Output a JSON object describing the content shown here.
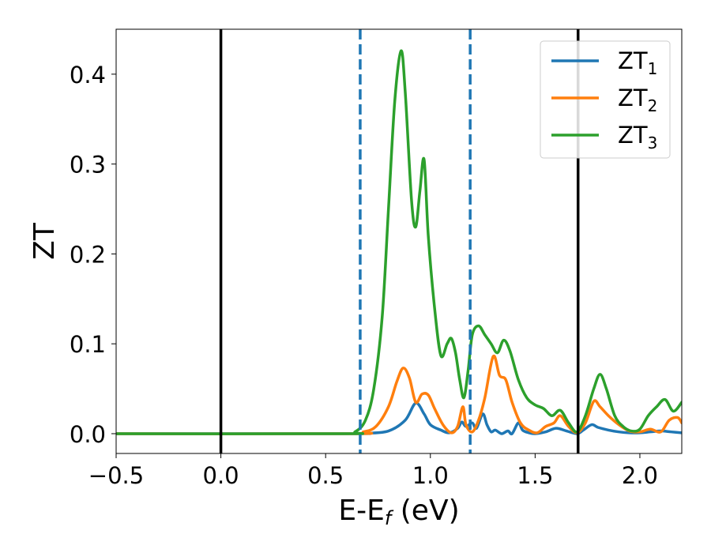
{
  "chart_data": {
    "type": "line",
    "title": "",
    "xlabel": {
      "base": "E-E",
      "sub": "f",
      "tail": " (eV)"
    },
    "ylabel": "ZT",
    "xlim": [
      -0.5,
      2.2
    ],
    "ylim": [
      -0.022,
      0.45
    ],
    "x_ticks": [
      {
        "value": -0.5,
        "label": "−0.5"
      },
      {
        "value": 0.0,
        "label": "0.0"
      },
      {
        "value": 0.5,
        "label": "0.5"
      },
      {
        "value": 1.0,
        "label": "1.0"
      },
      {
        "value": 1.5,
        "label": "1.5"
      },
      {
        "value": 2.0,
        "label": "2.0"
      }
    ],
    "y_ticks": [
      {
        "value": 0.0,
        "label": "0.0"
      },
      {
        "value": 0.1,
        "label": "0.1"
      },
      {
        "value": 0.2,
        "label": "0.2"
      },
      {
        "value": 0.3,
        "label": "0.3"
      },
      {
        "value": 0.4,
        "label": "0.4"
      }
    ],
    "grid": false,
    "legend_position": "top-right",
    "vlines": [
      {
        "x": 0.0,
        "style": "solid",
        "color": "#000000"
      },
      {
        "x": 0.665,
        "style": "dashed",
        "color": "#1f77b4"
      },
      {
        "x": 1.19,
        "style": "dashed",
        "color": "#1f77b4"
      },
      {
        "x": 1.705,
        "style": "solid",
        "color": "#000000"
      }
    ],
    "series": [
      {
        "name": "ZT",
        "name_sub": "1",
        "color": "#1f77b4",
        "x": [
          -0.5,
          0.6,
          0.7,
          0.8,
          0.88,
          0.93,
          0.97,
          1.0,
          1.05,
          1.09,
          1.13,
          1.15,
          1.17,
          1.2,
          1.22,
          1.25,
          1.27,
          1.29,
          1.31,
          1.34,
          1.37,
          1.39,
          1.42,
          1.44,
          1.47,
          1.5,
          1.55,
          1.6,
          1.65,
          1.7,
          1.73,
          1.77,
          1.8,
          1.85,
          1.9,
          1.95,
          2.0,
          2.05,
          2.1,
          2.15,
          2.2
        ],
        "y": [
          0.0,
          0.0,
          0.0005,
          0.003,
          0.015,
          0.034,
          0.022,
          0.01,
          0.004,
          0.001,
          0.006,
          0.013,
          0.008,
          0.012,
          0.006,
          0.022,
          0.01,
          0.002,
          0.004,
          0.0,
          0.003,
          0.0,
          0.012,
          0.004,
          0.001,
          0.0,
          0.002,
          0.006,
          0.003,
          0.0,
          0.004,
          0.01,
          0.007,
          0.004,
          0.002,
          0.001,
          0.001,
          0.002,
          0.003,
          0.002,
          0.001
        ]
      },
      {
        "name": "ZT",
        "name_sub": "2",
        "color": "#ff7f0e",
        "x": [
          -0.5,
          0.62,
          0.68,
          0.74,
          0.8,
          0.84,
          0.87,
          0.9,
          0.93,
          0.96,
          0.99,
          1.02,
          1.06,
          1.1,
          1.13,
          1.155,
          1.17,
          1.2,
          1.23,
          1.26,
          1.3,
          1.33,
          1.36,
          1.39,
          1.43,
          1.47,
          1.51,
          1.55,
          1.59,
          1.62,
          1.66,
          1.7,
          1.74,
          1.78,
          1.81,
          1.85,
          1.9,
          1.95,
          2.0,
          2.05,
          2.1,
          2.14,
          2.18,
          2.2
        ],
        "y": [
          0.0,
          0.0,
          0.002,
          0.008,
          0.03,
          0.058,
          0.073,
          0.062,
          0.035,
          0.044,
          0.043,
          0.028,
          0.01,
          0.001,
          0.008,
          0.03,
          0.01,
          0.002,
          0.015,
          0.04,
          0.086,
          0.065,
          0.06,
          0.035,
          0.012,
          0.004,
          0.001,
          0.008,
          0.012,
          0.02,
          0.008,
          0.001,
          0.012,
          0.036,
          0.03,
          0.02,
          0.01,
          0.003,
          0.002,
          0.005,
          0.002,
          0.015,
          0.018,
          0.012
        ]
      },
      {
        "name": "ZT",
        "name_sub": "3",
        "color": "#2ca02c",
        "x": [
          -0.5,
          0.58,
          0.64,
          0.69,
          0.73,
          0.77,
          0.8,
          0.83,
          0.86,
          0.88,
          0.91,
          0.93,
          0.95,
          0.97,
          0.99,
          1.02,
          1.05,
          1.08,
          1.1,
          1.12,
          1.14,
          1.16,
          1.18,
          1.2,
          1.23,
          1.26,
          1.29,
          1.32,
          1.35,
          1.38,
          1.42,
          1.46,
          1.5,
          1.54,
          1.58,
          1.62,
          1.66,
          1.7,
          1.74,
          1.78,
          1.81,
          1.84,
          1.88,
          1.92,
          1.96,
          2.0,
          2.04,
          2.08,
          2.12,
          2.16,
          2.2
        ],
        "y": [
          0.0,
          0.0,
          0.002,
          0.015,
          0.05,
          0.13,
          0.25,
          0.37,
          0.426,
          0.38,
          0.26,
          0.23,
          0.27,
          0.305,
          0.22,
          0.14,
          0.087,
          0.1,
          0.106,
          0.09,
          0.06,
          0.04,
          0.07,
          0.11,
          0.12,
          0.11,
          0.1,
          0.09,
          0.104,
          0.092,
          0.06,
          0.04,
          0.032,
          0.028,
          0.02,
          0.026,
          0.012,
          0.002,
          0.02,
          0.05,
          0.066,
          0.05,
          0.02,
          0.008,
          0.003,
          0.005,
          0.02,
          0.03,
          0.038,
          0.025,
          0.035
        ]
      }
    ]
  }
}
